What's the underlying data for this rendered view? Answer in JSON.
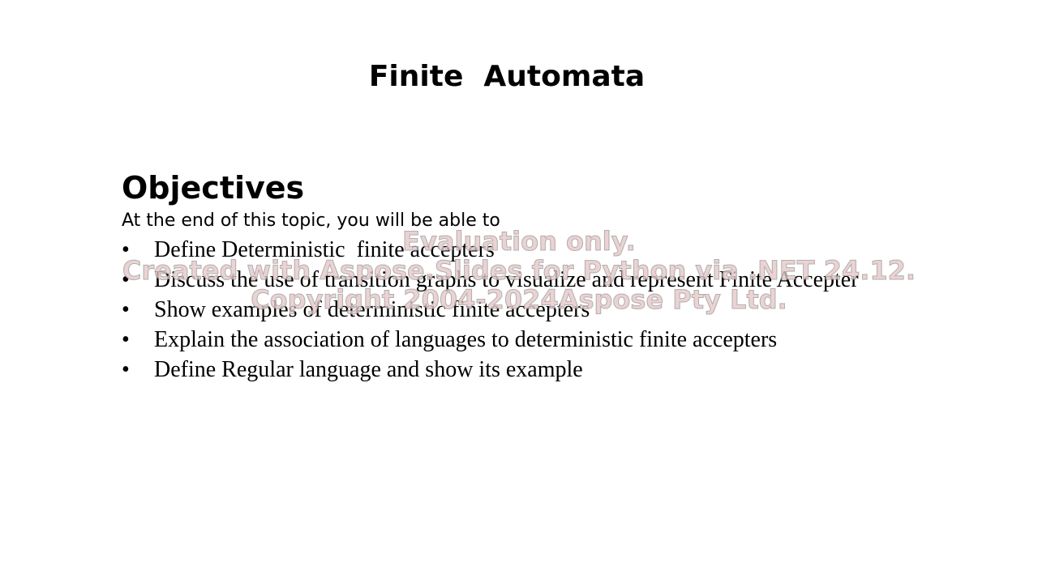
{
  "title": "Finite  Automata",
  "heading": "Objectives",
  "intro": "At the end of this topic, you will be able to",
  "bullets": [
    "Define Deterministic  finite accepters",
    "Discuss the use of transition graphs to visualize and represent Finite Accepter",
    "Show examples of deterministic finite accepters",
    "Explain the association of languages to deterministic finite accepters",
    "Define Regular language and show its example"
  ],
  "watermark": [
    "Evaluation only.",
    "Created with Aspose.Slides for Python via .NET 24.12.",
    "Copyright 2004-2024Aspose Pty Ltd."
  ]
}
